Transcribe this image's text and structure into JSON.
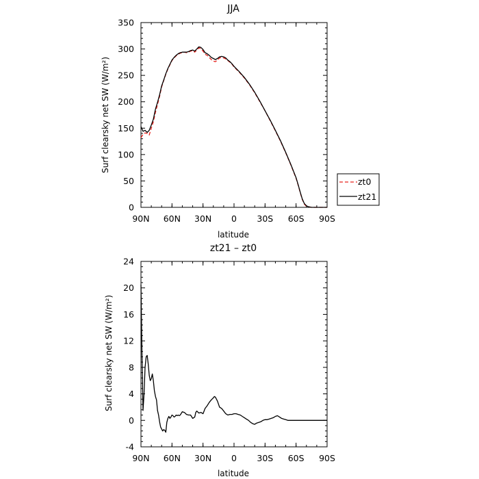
{
  "chart_data": [
    {
      "type": "line",
      "title": "JJA",
      "xlabel": "latitude",
      "ylabel": "Surf clearsky net SW (W/m²)",
      "ylim": [
        0,
        350
      ],
      "xlim": [
        90,
        -90
      ],
      "xticks": [
        {
          "value": 90,
          "label": "90N"
        },
        {
          "value": 60,
          "label": "60N"
        },
        {
          "value": 30,
          "label": "30N"
        },
        {
          "value": 0,
          "label": "0"
        },
        {
          "value": -30,
          "label": "30S"
        },
        {
          "value": -60,
          "label": "60S"
        },
        {
          "value": -90,
          "label": "90S"
        }
      ],
      "yticks": [
        0,
        50,
        100,
        150,
        200,
        250,
        300,
        350
      ],
      "legend_position": "right",
      "series": [
        {
          "name": "zt0",
          "color": "#e8211c",
          "dash": "dashed",
          "x": [
            90,
            88,
            86,
            84,
            82,
            80,
            78,
            76,
            74,
            72,
            70,
            68,
            66,
            64,
            62,
            60,
            58,
            56,
            54,
            52,
            50,
            48,
            46,
            44,
            42,
            40,
            38,
            36,
            34,
            32,
            30,
            28,
            26,
            24,
            22,
            20,
            18,
            16,
            14,
            12,
            10,
            8,
            6,
            4,
            2,
            0,
            -5,
            -10,
            -15,
            -20,
            -25,
            -30,
            -35,
            -40,
            -45,
            -50,
            -55,
            -60,
            -62,
            -64,
            -66,
            -68,
            -70,
            -72,
            -75,
            -80,
            -85,
            -90
          ],
          "y": [
            132,
            138,
            141,
            140,
            137,
            150,
            162,
            180,
            195,
            210,
            228,
            240,
            252,
            262,
            270,
            278,
            283,
            287,
            290,
            292,
            293,
            294,
            293,
            294,
            296,
            297,
            294,
            298,
            302,
            301,
            296,
            290,
            288,
            284,
            280,
            277,
            276,
            279,
            283,
            284,
            283,
            281,
            278,
            275,
            271,
            266,
            256,
            245,
            232,
            217,
            200,
            183,
            164,
            145,
            125,
            103,
            80,
            55,
            42,
            28,
            15,
            6,
            2,
            1,
            0,
            0,
            0,
            0
          ]
        },
        {
          "name": "zt21",
          "color": "#000000",
          "dash": "solid",
          "x": [
            90,
            88,
            86,
            84,
            82,
            80,
            78,
            76,
            74,
            72,
            70,
            68,
            66,
            64,
            62,
            60,
            58,
            56,
            54,
            52,
            50,
            48,
            46,
            44,
            42,
            40,
            38,
            36,
            34,
            32,
            30,
            28,
            26,
            24,
            22,
            20,
            18,
            16,
            14,
            12,
            10,
            8,
            6,
            4,
            2,
            0,
            -5,
            -10,
            -15,
            -20,
            -25,
            -30,
            -35,
            -40,
            -45,
            -50,
            -55,
            -60,
            -62,
            -64,
            -66,
            -68,
            -70,
            -72,
            -75,
            -80,
            -85,
            -90
          ],
          "y": [
            153,
            144,
            146,
            142,
            146,
            156,
            167,
            186,
            199,
            213,
            230,
            241,
            253,
            263,
            271,
            279,
            284,
            288,
            291,
            293,
            294,
            294,
            294,
            295,
            297,
            298,
            296,
            300,
            304,
            303,
            299,
            293,
            291,
            288,
            284,
            282,
            280,
            282,
            285,
            286,
            285,
            283,
            279,
            276,
            272,
            267,
            257,
            246,
            233,
            218,
            201,
            183,
            165,
            146,
            126,
            104,
            81,
            56,
            43,
            29,
            16,
            7,
            3,
            1,
            0,
            0,
            0,
            0
          ]
        }
      ]
    },
    {
      "type": "line",
      "title": "zt21 – zt0",
      "xlabel": "latitude",
      "ylabel": "Surf clearsky net SW (W/m²)",
      "ylim": [
        -4,
        24
      ],
      "xlim": [
        90,
        -90
      ],
      "xticks": [
        {
          "value": 90,
          "label": "90N"
        },
        {
          "value": 60,
          "label": "60N"
        },
        {
          "value": 30,
          "label": "30N"
        },
        {
          "value": 0,
          "label": "0"
        },
        {
          "value": -30,
          "label": "30S"
        },
        {
          "value": -60,
          "label": "60S"
        },
        {
          "value": -90,
          "label": "90S"
        }
      ],
      "yticks": [
        -4,
        0,
        4,
        8,
        12,
        16,
        20,
        24
      ],
      "series": [
        {
          "color": "#000000",
          "dash": "solid",
          "x": [
            90,
            89,
            88,
            87,
            86,
            85,
            84,
            83,
            82,
            81,
            80,
            79,
            78,
            77,
            76,
            75,
            74,
            73,
            72,
            71,
            70,
            69,
            68,
            67,
            66,
            65,
            64,
            63,
            62,
            61,
            60,
            59,
            58,
            57,
            56,
            55,
            54,
            53,
            52,
            50,
            48,
            46,
            44,
            42,
            40,
            38,
            37,
            36,
            34,
            32,
            30,
            28,
            26,
            24,
            22,
            20,
            19,
            18,
            16,
            14,
            12,
            10,
            8,
            6,
            4,
            2,
            0,
            -2,
            -4,
            -6,
            -8,
            -10,
            -12,
            -14,
            -16,
            -18,
            -20,
            -22,
            -24,
            -26,
            -28,
            -30,
            -32,
            -34,
            -36,
            -38,
            -40,
            -42,
            -44,
            -46,
            -48,
            -50,
            -52,
            -54,
            -56,
            -58,
            -60,
            -65,
            -70,
            -75,
            -80,
            -85,
            -90
          ],
          "y": [
            20.5,
            10.0,
            1.5,
            4.0,
            8.0,
            9.6,
            9.8,
            8.5,
            6.8,
            6.0,
            6.3,
            7.0,
            6.0,
            4.5,
            3.6,
            3.1,
            1.5,
            0.8,
            -0.2,
            -1.0,
            -1.3,
            -1.6,
            -1.4,
            -1.5,
            -1.8,
            -0.3,
            0.3,
            0.6,
            0.3,
            0.5,
            0.8,
            0.7,
            0.5,
            0.6,
            0.8,
            0.7,
            0.8,
            0.7,
            0.8,
            1.3,
            1.2,
            0.9,
            0.8,
            0.8,
            0.3,
            0.5,
            1.2,
            1.4,
            1.1,
            1.2,
            1.0,
            1.8,
            2.2,
            2.7,
            3.1,
            3.4,
            3.6,
            3.5,
            2.9,
            2.0,
            1.8,
            1.4,
            1.0,
            0.8,
            0.9,
            0.9,
            1.0,
            1.0,
            0.9,
            0.8,
            0.6,
            0.4,
            0.2,
            0.0,
            -0.3,
            -0.5,
            -0.6,
            -0.4,
            -0.3,
            -0.2,
            0.0,
            0.1,
            0.1,
            0.2,
            0.3,
            0.4,
            0.6,
            0.7,
            0.5,
            0.3,
            0.2,
            0.1,
            0.0,
            0.0,
            0.0,
            0.0,
            0.0,
            0.0,
            0.0,
            0.0,
            0.0,
            0.0,
            0.0
          ]
        }
      ]
    }
  ]
}
